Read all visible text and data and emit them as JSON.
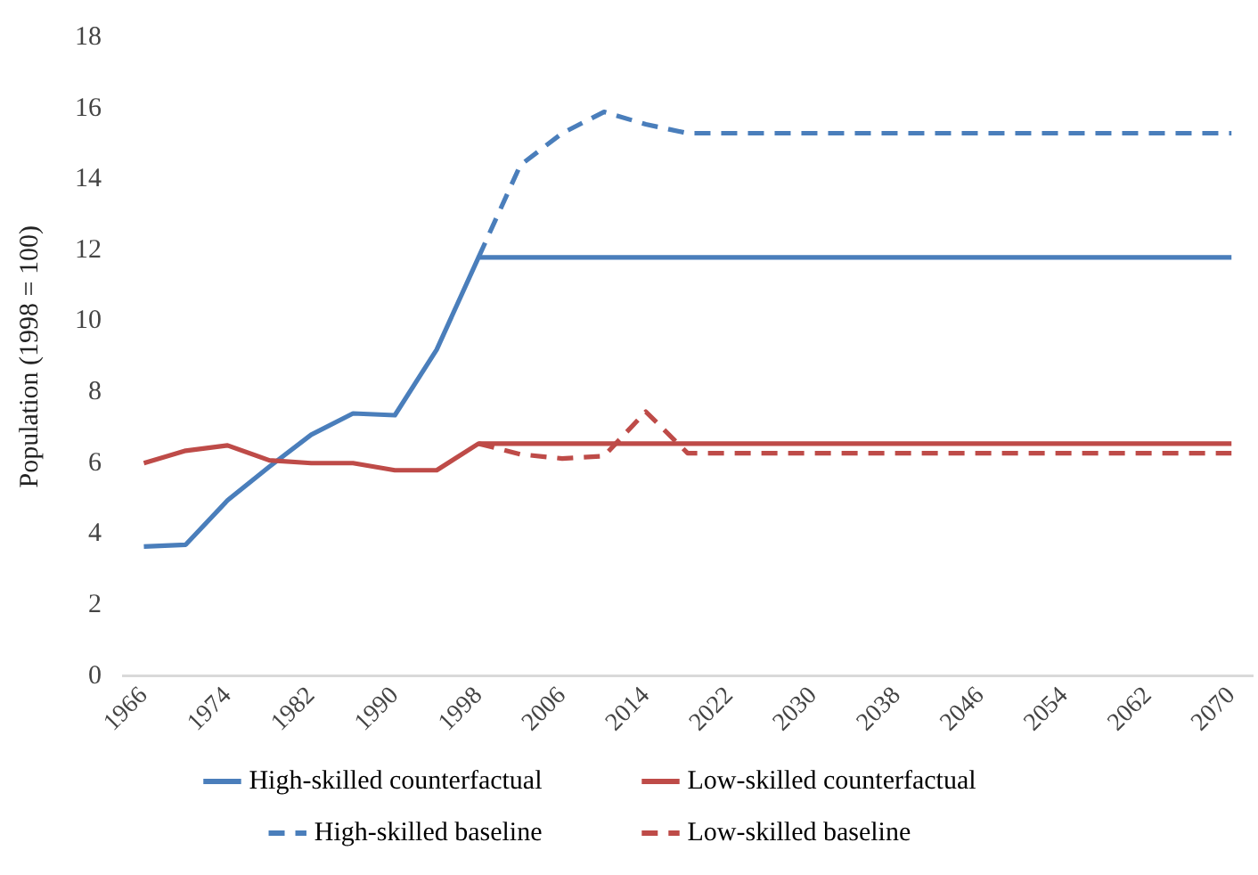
{
  "chart_data": {
    "type": "line",
    "ylabel": "Population (1998 = 100)",
    "categories": [
      "1966",
      null,
      "1974",
      null,
      "1982",
      null,
      "1990",
      null,
      "1998",
      null,
      "2006",
      null,
      "2014",
      null,
      "2022",
      null,
      "2030",
      null,
      "2038",
      null,
      "2046",
      null,
      "2054",
      null,
      "2062",
      null,
      "2070"
    ],
    "series": [
      {
        "name": "High-skilled counterfactual",
        "color": "#4a7ebb",
        "line_style": "solid",
        "values": [
          3.65,
          3.7,
          4.95,
          5.9,
          6.8,
          7.4,
          7.35,
          9.2,
          11.8,
          11.8,
          11.8,
          11.8,
          11.8,
          11.8,
          11.8,
          11.8,
          11.8,
          11.8,
          11.8,
          11.8,
          11.8,
          11.8,
          11.8,
          11.8,
          11.8,
          11.8,
          11.8
        ]
      },
      {
        "name": "Low-skilled counterfactual",
        "color": "#be4b48",
        "line_style": "solid",
        "values": [
          6.0,
          6.35,
          6.5,
          6.08,
          6.0,
          6.0,
          5.8,
          5.8,
          6.55,
          6.55,
          6.55,
          6.55,
          6.55,
          6.55,
          6.55,
          6.55,
          6.55,
          6.55,
          6.55,
          6.55,
          6.55,
          6.55,
          6.55,
          6.55,
          6.55,
          6.55,
          6.55
        ]
      },
      {
        "name": "High-skilled baseline",
        "color": "#4a7ebb",
        "line_style": "dashed",
        "values": [
          null,
          null,
          null,
          null,
          null,
          null,
          null,
          null,
          11.8,
          14.4,
          15.3,
          15.9,
          15.55,
          15.3,
          15.3,
          15.3,
          15.3,
          15.3,
          15.3,
          15.3,
          15.3,
          15.3,
          15.3,
          15.3,
          15.3,
          15.3,
          15.3
        ]
      },
      {
        "name": "Low-skilled baseline",
        "color": "#be4b48",
        "line_style": "dashed",
        "values": [
          null,
          null,
          null,
          null,
          null,
          null,
          null,
          null,
          6.55,
          6.25,
          6.13,
          6.2,
          7.45,
          6.28,
          6.28,
          6.28,
          6.28,
          6.28,
          6.28,
          6.28,
          6.28,
          6.28,
          6.28,
          6.28,
          6.28,
          6.28,
          6.28
        ]
      }
    ],
    "ylim": [
      0,
      18
    ],
    "yticks": [
      0,
      2,
      4,
      6,
      8,
      10,
      12,
      14,
      16,
      18
    ],
    "grid": false,
    "legend": "bottom",
    "marker": "none"
  }
}
